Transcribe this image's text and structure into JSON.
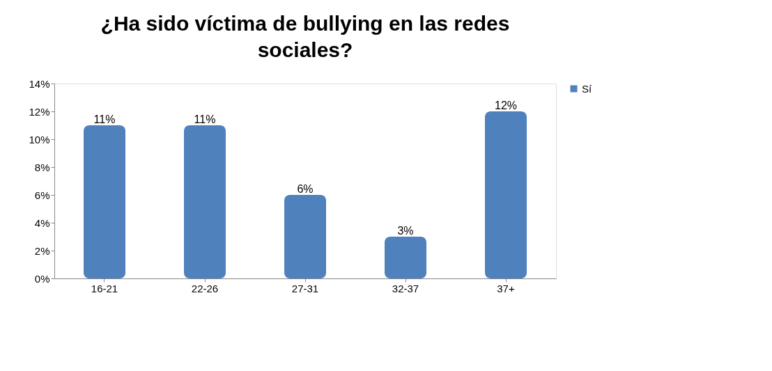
{
  "chart_data": {
    "type": "bar",
    "title": "¿Ha sido víctima de bullying en las redes sociales?",
    "categories": [
      "16-21",
      "22-26",
      "27-31",
      "32-37",
      "37+"
    ],
    "series": [
      {
        "name": "Sí",
        "color": "#4f81bd",
        "values": [
          11,
          11,
          6,
          3,
          12
        ]
      }
    ],
    "value_labels": [
      "11%",
      "11%",
      "6%",
      "3%",
      "12%"
    ],
    "ylim": [
      0,
      14
    ],
    "yticks": [
      {
        "value": 0,
        "label": "0%"
      },
      {
        "value": 2,
        "label": "2%"
      },
      {
        "value": 4,
        "label": "4%"
      },
      {
        "value": 6,
        "label": "6%"
      },
      {
        "value": 8,
        "label": "8%"
      },
      {
        "value": 10,
        "label": "10%"
      },
      {
        "value": 12,
        "label": "12%"
      },
      {
        "value": 14,
        "label": "14%"
      }
    ],
    "grid": false,
    "legend": "right"
  }
}
